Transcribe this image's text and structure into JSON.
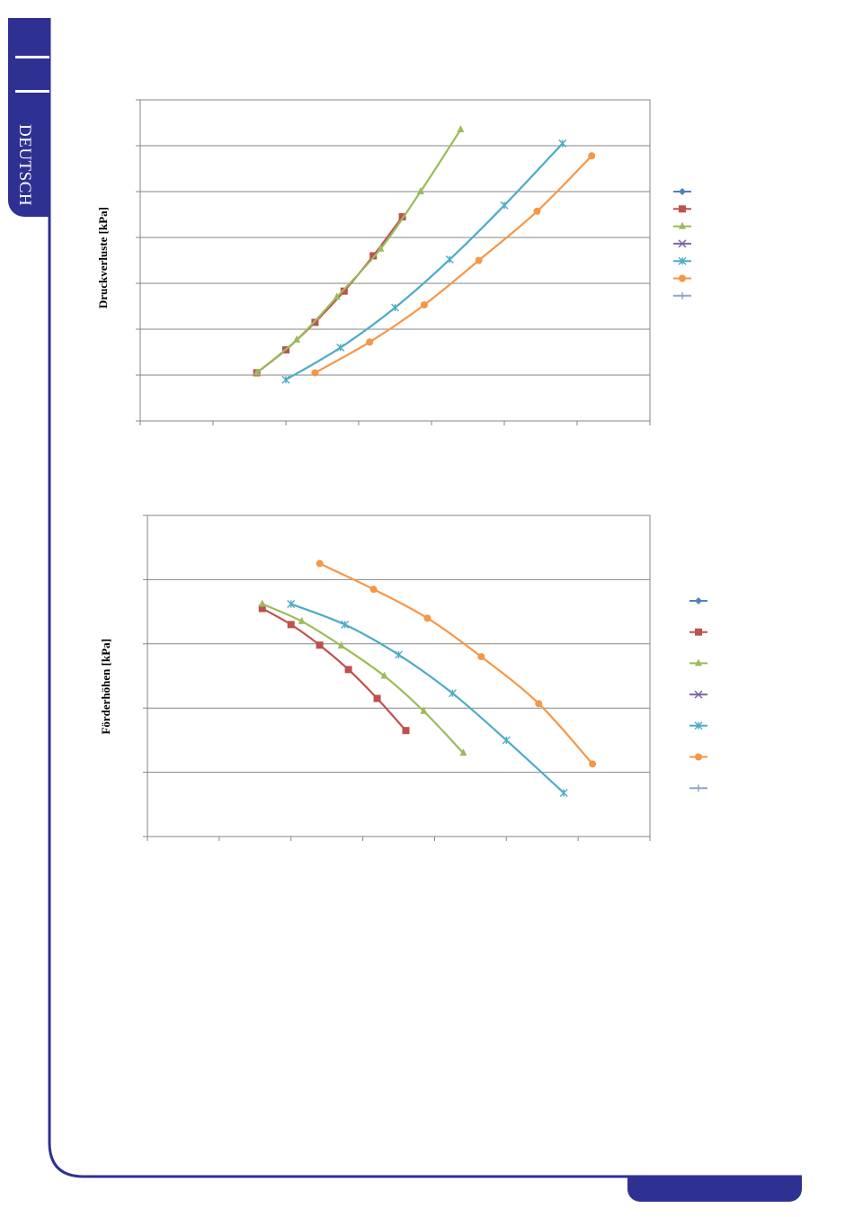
{
  "page": {
    "language_tab": "DEUTSCH",
    "colors": {
      "brand": "#2e3192",
      "grid": "#868686"
    }
  },
  "chart_data": [
    {
      "type": "line",
      "ylabel": "Druckverluste [kPa]",
      "xlim": [
        0,
        7
      ],
      "ylim": [
        0,
        7
      ],
      "grid": true,
      "legend_position": "right",
      "series": [
        {
          "color": "#4f81bd",
          "marker": "diamond",
          "points": []
        },
        {
          "color": "#c0504d",
          "marker": "square",
          "points": [
            [
              1.6,
              1.05
            ],
            [
              2.0,
              1.55
            ],
            [
              2.4,
              2.15
            ],
            [
              2.8,
              2.83
            ],
            [
              3.2,
              3.6
            ],
            [
              3.6,
              4.45
            ]
          ]
        },
        {
          "color": "#9bbb59",
          "marker": "triangle",
          "points": [
            [
              1.6,
              1.05
            ],
            [
              2.15,
              1.77
            ],
            [
              2.7,
              2.7
            ],
            [
              3.3,
              3.75
            ],
            [
              3.85,
              5.0
            ],
            [
              4.4,
              6.35
            ]
          ]
        },
        {
          "color": "#8064a2",
          "marker": "x",
          "points": []
        },
        {
          "color": "#4bacc6",
          "marker": "star",
          "points": [
            [
              2.0,
              0.9
            ],
            [
              2.75,
              1.6
            ],
            [
              3.5,
              2.47
            ],
            [
              4.25,
              3.52
            ],
            [
              5.0,
              4.7
            ],
            [
              5.8,
              6.05
            ]
          ]
        },
        {
          "color": "#f79646",
          "marker": "circle",
          "points": [
            [
              2.4,
              1.05
            ],
            [
              3.15,
              1.72
            ],
            [
              3.9,
              2.53
            ],
            [
              4.65,
              3.5
            ],
            [
              5.45,
              4.57
            ],
            [
              6.2,
              5.78
            ]
          ]
        },
        {
          "color": "#8ea5cb",
          "marker": "plus",
          "points": []
        }
      ]
    },
    {
      "type": "line",
      "ylabel": "Förderhöhen [kPa]",
      "xlim": [
        0,
        7
      ],
      "ylim": [
        0,
        5
      ],
      "grid": true,
      "legend_position": "right",
      "series": [
        {
          "color": "#4f81bd",
          "marker": "diamond",
          "points": []
        },
        {
          "color": "#c0504d",
          "marker": "square",
          "points": [
            [
              1.6,
              3.55
            ],
            [
              2.0,
              3.3
            ],
            [
              2.4,
              2.98
            ],
            [
              2.8,
              2.6
            ],
            [
              3.2,
              2.15
            ],
            [
              3.6,
              1.65
            ]
          ]
        },
        {
          "color": "#9bbb59",
          "marker": "triangle",
          "points": [
            [
              1.6,
              3.62
            ],
            [
              2.15,
              3.35
            ],
            [
              2.7,
              2.97
            ],
            [
              3.3,
              2.5
            ],
            [
              3.85,
              1.95
            ],
            [
              4.4,
              1.3
            ]
          ]
        },
        {
          "color": "#8064a2",
          "marker": "x",
          "points": []
        },
        {
          "color": "#4bacc6",
          "marker": "star",
          "points": [
            [
              2.0,
              3.62
            ],
            [
              2.75,
              3.3
            ],
            [
              3.5,
              2.83
            ],
            [
              4.25,
              2.23
            ],
            [
              5.0,
              1.5
            ],
            [
              5.8,
              0.68
            ]
          ]
        },
        {
          "color": "#f79646",
          "marker": "circle",
          "points": [
            [
              2.4,
              4.25
            ],
            [
              3.15,
              3.85
            ],
            [
              3.9,
              3.4
            ],
            [
              4.65,
              2.8
            ],
            [
              5.45,
              2.07
            ],
            [
              6.2,
              1.13
            ]
          ]
        },
        {
          "color": "#8ea5cb",
          "marker": "plus",
          "points": []
        }
      ]
    }
  ]
}
